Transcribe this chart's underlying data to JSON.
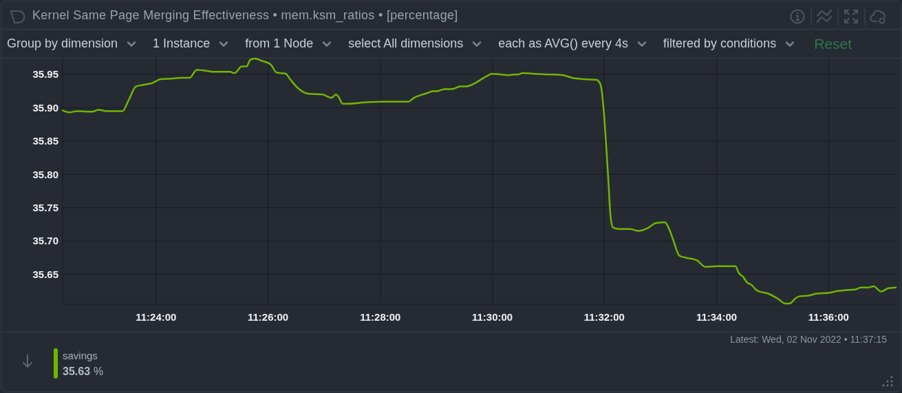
{
  "chart_data": {
    "type": "line",
    "title": "Kernel Same Page Merging Effectiveness • mem.ksm_ratios • [percentage]",
    "x": [
      11.3722,
      11.3742,
      11.3764,
      11.3811,
      11.3828,
      11.3854,
      11.39,
      11.3919,
      11.394,
      11.3957,
      11.3988,
      11.4014,
      11.4052,
      11.4074,
      11.41,
      11.4121,
      11.4156,
      11.4168,
      11.422,
      11.4233,
      11.4255,
      11.4269,
      11.428,
      11.4294,
      11.4311,
      11.4341,
      11.4358,
      11.4371,
      11.4386,
      11.4397,
      11.4423,
      11.4453,
      11.4496,
      11.4513,
      11.4522,
      11.4535,
      11.4542,
      11.4555,
      11.4569,
      11.4621,
      11.4673,
      11.475,
      11.4767,
      11.4793,
      11.4806,
      11.4823,
      11.4836,
      11.4858,
      11.4879,
      11.4905,
      11.4922,
      11.4952,
      11.4978,
      11.5,
      11.5026,
      11.5047,
      11.5064,
      11.5077,
      11.509,
      11.5125,
      11.5168,
      11.5181,
      11.5211,
      11.5237,
      11.5271,
      11.531,
      11.5319,
      11.5325,
      11.5332,
      11.5339,
      11.5345,
      11.5352,
      11.5359,
      11.5375,
      11.541,
      11.5435,
      11.5461,
      11.5487,
      11.5513,
      11.5526,
      11.5539,
      11.5556,
      11.5574,
      11.5608,
      11.5634,
      11.5669,
      11.5723,
      11.5733,
      11.5746,
      11.5759,
      11.5768,
      11.5789,
      11.582,
      11.585,
      11.5871,
      11.5884,
      11.5902,
      11.5914,
      11.594,
      11.5966,
      11.6001,
      11.6027,
      11.6048,
      11.6078,
      11.6096,
      11.6117,
      11.6134,
      11.6156,
      11.6178,
      11.62
    ],
    "series": [
      {
        "name": "savings",
        "color": "#72b500",
        "values": [
          35.896,
          35.893,
          35.895,
          35.894,
          35.897,
          35.895,
          35.895,
          35.912,
          35.932,
          35.934,
          35.937,
          35.943,
          35.944,
          35.945,
          35.945,
          35.957,
          35.955,
          35.954,
          35.954,
          35.952,
          35.962,
          35.962,
          35.972,
          35.974,
          35.971,
          35.965,
          35.953,
          35.952,
          35.951,
          35.944,
          35.929,
          35.921,
          35.92,
          35.916,
          35.915,
          35.92,
          35.917,
          35.906,
          35.906,
          35.908,
          35.909,
          35.909,
          35.915,
          35.92,
          35.922,
          35.925,
          35.925,
          35.928,
          35.928,
          35.932,
          35.932,
          35.938,
          35.946,
          35.951,
          35.95,
          35.949,
          35.95,
          35.95,
          35.952,
          35.951,
          35.95,
          35.95,
          35.949,
          35.945,
          35.943,
          35.942,
          35.938,
          35.927,
          35.892,
          35.84,
          35.792,
          35.735,
          35.72,
          35.718,
          35.718,
          35.715,
          35.719,
          35.727,
          35.728,
          35.718,
          35.7,
          35.678,
          35.675,
          35.671,
          35.661,
          35.662,
          35.662,
          35.652,
          35.646,
          35.637,
          35.635,
          35.625,
          35.621,
          35.613,
          35.606,
          35.606,
          35.614,
          35.617,
          35.618,
          35.621,
          35.622,
          35.625,
          35.626,
          35.627,
          35.63,
          35.63,
          35.632,
          35.624,
          35.629,
          35.63
        ]
      }
    ],
    "xlim": [
      11.3722,
      11.62
    ],
    "xticks": [
      {
        "value": 11.4,
        "label": "11:24:00"
      },
      {
        "value": 11.4333,
        "label": "11:26:00"
      },
      {
        "value": 11.4667,
        "label": "11:28:00"
      },
      {
        "value": 11.5,
        "label": "11:30:00"
      },
      {
        "value": 11.5333,
        "label": "11:32:00"
      },
      {
        "value": 11.5667,
        "label": "11:34:00"
      },
      {
        "value": 11.6,
        "label": "11:36:00"
      }
    ],
    "ylim": [
      35.605,
      35.975
    ],
    "yticks": [
      35.65,
      {
        "value": 35.7,
        "label": "35.70"
      },
      35.75,
      {
        "value": 35.8,
        "label": "35.80"
      },
      35.85,
      {
        "value": 35.9,
        "label": "35.90"
      },
      35.95
    ],
    "grid": true,
    "legend": "bottom",
    "annotations": [
      "Group by dimension",
      "1 Instance",
      "from 1 Node",
      "select All dimensions",
      "each as AVG() every 4s",
      "filtered by conditions",
      "Reset",
      "Latest: Wed, 02 Nov 2022 • 11:37:15",
      "35.63 %"
    ]
  }
}
